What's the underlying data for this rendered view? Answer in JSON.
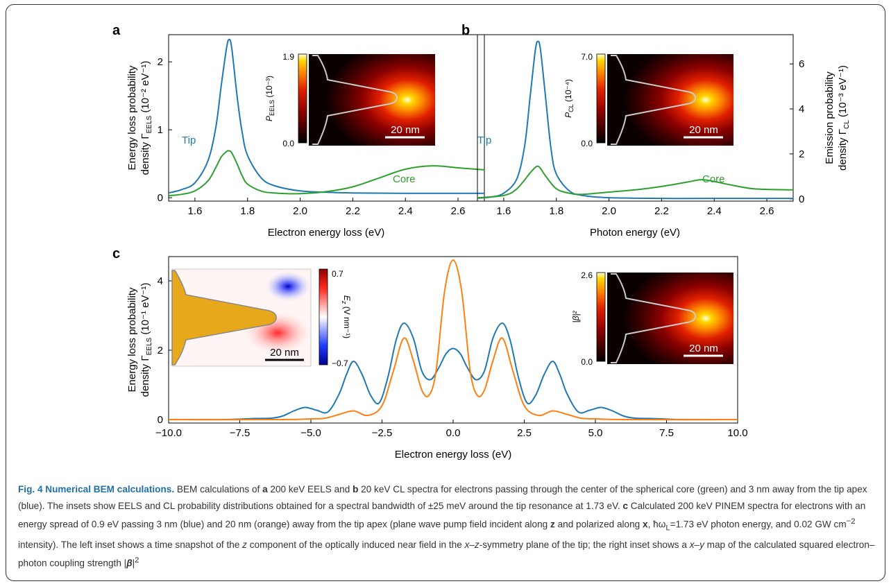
{
  "colors": {
    "blue": "#1f77b4",
    "green": "#2ca02c",
    "orange": "#ff7f0e",
    "gold": "#e8a81c"
  },
  "panels": {
    "a": {
      "label": "a",
      "ylabel_line1": "Energy loss probability",
      "ylabel_line2": "density Γ",
      "ylabel_sub": "EELS",
      "ylabel_unit": " (10⁻² eV⁻¹)",
      "inset_cbar_top": "1.9",
      "inset_cbar_bottom": "0.0",
      "inset_cbar_label": "P",
      "inset_cbar_sub": "EELS",
      "inset_cbar_unit": " (10⁻³)",
      "scalebar": "20 nm"
    },
    "b": {
      "label": "b",
      "ylabel_line1": "Emission probability",
      "ylabel_line2": "density Γ",
      "ylabel_sub": "CL",
      "ylabel_unit": " (10⁻³ eV⁻¹)",
      "inset_cbar_top": "7.0",
      "inset_cbar_bottom": "0.0",
      "inset_cbar_label": "P",
      "inset_cbar_sub": "CL",
      "inset_cbar_unit": " (10⁻⁴)",
      "scalebar": "20 nm"
    },
    "c": {
      "label": "c",
      "ylabel_line1": "Energy loss probability",
      "ylabel_line2": "density Γ",
      "ylabel_sub": "EELS",
      "ylabel_unit": " (10⁻¹ eV⁻¹)",
      "left_cbar_top": "0.7",
      "left_cbar_bottom": "−0.7",
      "left_cbar_label": "E",
      "left_cbar_sub": "z",
      "left_cbar_unit": " (V nm⁻¹)",
      "left_scalebar": "20 nm",
      "right_cbar_top": "2.6",
      "right_cbar_bottom": "0.0",
      "right_cbar_label": "|β|²",
      "right_scalebar": "20 nm"
    }
  },
  "chart_data": [
    {
      "type": "line",
      "panel": "a",
      "xlabel": "Electron energy loss (eV)",
      "xlim": [
        1.5,
        2.7
      ],
      "ylim": [
        -0.05,
        2.4
      ],
      "xticks": [
        "1.6",
        "1.8",
        "2.0",
        "2.2",
        "2.4",
        "2.6"
      ],
      "yticks": [
        "0",
        "1",
        "2"
      ],
      "series": [
        {
          "name": "Tip",
          "color": "#1f77b4",
          "x": [
            1.5,
            1.55,
            1.6,
            1.65,
            1.68,
            1.7,
            1.72,
            1.73,
            1.74,
            1.76,
            1.78,
            1.8,
            1.85,
            1.9,
            2.0,
            2.1,
            2.2,
            2.4,
            2.6,
            2.7
          ],
          "y": [
            0.07,
            0.12,
            0.22,
            0.55,
            1.05,
            1.65,
            2.2,
            2.33,
            2.2,
            1.5,
            0.95,
            0.62,
            0.3,
            0.18,
            0.1,
            0.08,
            0.07,
            0.065,
            0.065,
            0.065
          ]
        },
        {
          "name": "Core",
          "color": "#2ca02c",
          "x": [
            1.5,
            1.55,
            1.6,
            1.65,
            1.68,
            1.7,
            1.72,
            1.73,
            1.74,
            1.76,
            1.78,
            1.8,
            1.85,
            1.9,
            2.0,
            2.1,
            2.2,
            2.3,
            2.4,
            2.5,
            2.6,
            2.7
          ],
          "y": [
            0.03,
            0.05,
            0.1,
            0.25,
            0.45,
            0.6,
            0.68,
            0.69,
            0.66,
            0.5,
            0.32,
            0.2,
            0.1,
            0.07,
            0.06,
            0.09,
            0.16,
            0.29,
            0.42,
            0.47,
            0.44,
            0.41
          ]
        }
      ]
    },
    {
      "type": "line",
      "panel": "b",
      "xlabel": "Photon energy (eV)",
      "xlim": [
        1.5,
        2.7
      ],
      "ylim": [
        -0.1,
        7.3
      ],
      "xticks": [
        "1.6",
        "1.8",
        "2.0",
        "2.2",
        "2.4",
        "2.6"
      ],
      "yticks": [
        "0",
        "2",
        "4",
        "6"
      ],
      "series": [
        {
          "name": "Tip",
          "color": "#1f77b4",
          "x": [
            1.5,
            1.55,
            1.6,
            1.65,
            1.68,
            1.7,
            1.72,
            1.73,
            1.74,
            1.76,
            1.78,
            1.8,
            1.85,
            1.9,
            2.0,
            2.2,
            2.4,
            2.7
          ],
          "y": [
            0.03,
            0.08,
            0.25,
            0.9,
            2.4,
            4.5,
            6.6,
            7.0,
            6.6,
            4.4,
            2.2,
            1.1,
            0.35,
            0.15,
            0.05,
            0.02,
            0.02,
            0.02
          ]
        },
        {
          "name": "Core",
          "color": "#2ca02c",
          "x": [
            1.5,
            1.6,
            1.65,
            1.7,
            1.72,
            1.73,
            1.74,
            1.76,
            1.8,
            1.85,
            1.9,
            2.0,
            2.1,
            2.2,
            2.3,
            2.36,
            2.45,
            2.55,
            2.7
          ],
          "y": [
            0.05,
            0.15,
            0.45,
            1.15,
            1.4,
            1.45,
            1.35,
            1.0,
            0.45,
            0.25,
            0.2,
            0.3,
            0.4,
            0.55,
            0.75,
            0.85,
            0.65,
            0.45,
            0.4
          ]
        }
      ]
    },
    {
      "type": "line",
      "panel": "c",
      "xlabel": "Electron energy loss (eV)",
      "xlim": [
        -10,
        10
      ],
      "ylim": [
        -0.1,
        4.7
      ],
      "xticks": [
        "−10.0",
        "−7.5",
        "−5.0",
        "−2.5",
        "0.0",
        "2.5",
        "5.0",
        "7.5",
        "10.0"
      ],
      "yticks": [
        "0",
        "2",
        "4"
      ],
      "series": [
        {
          "name": "",
          "color": "#1f77b4",
          "x": [
            -10,
            -8,
            -7,
            -6.4,
            -6,
            -5.6,
            -5.2,
            -4.8,
            -4.4,
            -4,
            -3.75,
            -3.5,
            -3.2,
            -2.9,
            -2.6,
            -2.3,
            -2.0,
            -1.73,
            -1.4,
            -1.1,
            -0.8,
            -0.5,
            -0.25,
            0,
            0.25,
            0.5,
            0.8,
            1.1,
            1.4,
            1.73,
            2.0,
            2.3,
            2.6,
            2.9,
            3.2,
            3.5,
            3.75,
            4,
            4.4,
            4.8,
            5.2,
            5.6,
            6,
            6.4,
            7,
            8,
            10
          ],
          "y": [
            0,
            0,
            0.03,
            0.04,
            0.1,
            0.25,
            0.35,
            0.27,
            0.22,
            0.75,
            1.3,
            1.68,
            1.3,
            0.7,
            0.48,
            1.2,
            2.3,
            2.78,
            2.35,
            1.4,
            1.15,
            1.5,
            1.9,
            2.05,
            1.9,
            1.5,
            1.15,
            1.4,
            2.35,
            2.78,
            2.3,
            1.2,
            0.48,
            0.7,
            1.3,
            1.68,
            1.3,
            0.75,
            0.22,
            0.27,
            0.35,
            0.25,
            0.1,
            0.04,
            0.03,
            0,
            0
          ]
        },
        {
          "name": "",
          "color": "#ff7f0e",
          "x": [
            -10,
            -6,
            -5,
            -4.5,
            -4,
            -3.5,
            -3,
            -2.5,
            -2.1,
            -1.73,
            -1.4,
            -1.1,
            -0.85,
            -0.6,
            -0.3,
            0,
            0.3,
            0.6,
            0.85,
            1.1,
            1.4,
            1.73,
            2.1,
            2.5,
            3,
            3.5,
            4,
            4.5,
            5,
            6,
            10
          ],
          "y": [
            0,
            0,
            0.02,
            0.04,
            0.15,
            0.25,
            0.12,
            0.4,
            1.4,
            2.35,
            1.7,
            0.85,
            0.7,
            1.4,
            3.7,
            4.6,
            3.7,
            1.4,
            0.7,
            0.85,
            1.7,
            2.35,
            1.4,
            0.4,
            0.12,
            0.25,
            0.15,
            0.04,
            0.02,
            0,
            0
          ]
        }
      ]
    }
  ],
  "series_labels": {
    "a_tip": "Tip",
    "a_core": "Core",
    "b_tip": "Tip",
    "b_core": "Core"
  },
  "caption": {
    "title": "Fig. 4 Numerical BEM calculations.",
    "s1": " BEM calculations of ",
    "a": "a",
    "s2": " 200 keV EELS and ",
    "b": "b",
    "s3": " 20 keV CL spectra for electrons passing through the center of the spherical core (green) and 3 nm away from the tip apex (blue). The insets show EELS and CL probability distributions obtained for a spectral bandwidth of ±25 meV around the tip resonance at 1.73 eV. ",
    "c": "c",
    "s4": " Calculated 200 keV PINEM spectra for electrons with an energy spread of 0.9 eV passing 3 nm (blue) and 20 nm (orange) away from the tip apex (plane wave pump field incident along ",
    "z": "z",
    "s5": " and polarized along ",
    "x": "x",
    "s6": ", ħω",
    "sub_L": "L",
    "s7": "=1.73 eV photon energy, and 0.02 GW cm",
    "sup_m2": "−2",
    "s8": " intensity). The left inset shows a time snapshot of the ",
    "zi": "z",
    "s9": " component of the optically induced near field in the ",
    "xz": "x–z",
    "s10": "-symmetry plane of the tip; the right inset shows a ",
    "xy": "x–y",
    "s11": " map of the calculated squared electron–photon coupling strength |",
    "beta": "β",
    "s12": "|",
    "sup_2": "2"
  }
}
